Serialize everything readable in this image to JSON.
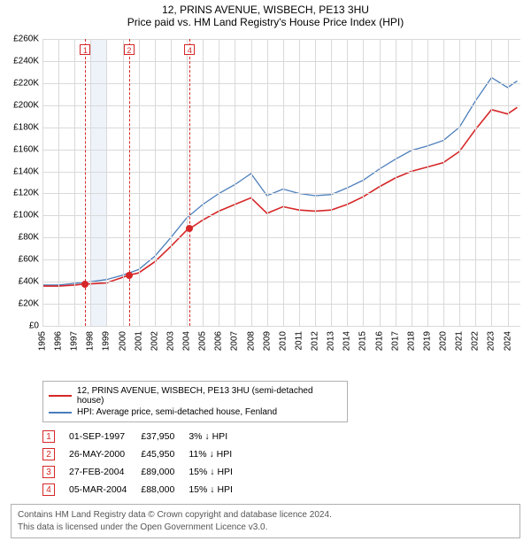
{
  "title": {
    "line1": "12, PRINS AVENUE, WISBECH, PE13 3HU",
    "line2": "Price paid vs. HM Land Registry's House Price Index (HPI)"
  },
  "chart": {
    "type": "line",
    "x_domain": [
      1995,
      2024.8
    ],
    "y_domain": [
      0,
      260000
    ],
    "y_ticks": [
      0,
      20000,
      40000,
      60000,
      80000,
      100000,
      120000,
      140000,
      160000,
      180000,
      200000,
      220000,
      240000,
      260000
    ],
    "y_tick_labels": [
      "£0",
      "£20K",
      "£40K",
      "£60K",
      "£80K",
      "£100K",
      "£120K",
      "£140K",
      "£160K",
      "£180K",
      "£200K",
      "£220K",
      "£240K",
      "£260K"
    ],
    "x_ticks": [
      1995,
      1996,
      1997,
      1998,
      1999,
      2000,
      2001,
      2002,
      2003,
      2004,
      2005,
      2006,
      2007,
      2008,
      2009,
      2010,
      2011,
      2012,
      2013,
      2014,
      2015,
      2016,
      2017,
      2018,
      2019,
      2020,
      2021,
      2022,
      2023,
      2024
    ],
    "gridline_color": "#d9d9d9",
    "background_color": "#ffffff",
    "band": {
      "start": 1998,
      "end": 1999,
      "color": "#eef3fa"
    },
    "series": [
      {
        "id": "price_paid",
        "label": "12, PRINS AVENUE, WISBECH, PE13 3HU (semi-detached house)",
        "color": "#d62728",
        "line_width": 1.6,
        "points": [
          [
            1995,
            36000
          ],
          [
            1996,
            36000
          ],
          [
            1997,
            37000
          ],
          [
            1997.67,
            37950
          ],
          [
            1998,
            38000
          ],
          [
            1999,
            39000
          ],
          [
            2000.4,
            45950
          ],
          [
            2001,
            48000
          ],
          [
            2002,
            58000
          ],
          [
            2003,
            72000
          ],
          [
            2004.15,
            89000
          ],
          [
            2004.18,
            88000
          ],
          [
            2005,
            96000
          ],
          [
            2006,
            104000
          ],
          [
            2007,
            110000
          ],
          [
            2008,
            116000
          ],
          [
            2009,
            102000
          ],
          [
            2010,
            108000
          ],
          [
            2011,
            105000
          ],
          [
            2012,
            104000
          ],
          [
            2013,
            105000
          ],
          [
            2014,
            110000
          ],
          [
            2015,
            117000
          ],
          [
            2016,
            126000
          ],
          [
            2017,
            134000
          ],
          [
            2018,
            140000
          ],
          [
            2019,
            144000
          ],
          [
            2020,
            148000
          ],
          [
            2021,
            158000
          ],
          [
            2022,
            178000
          ],
          [
            2023,
            196000
          ],
          [
            2024,
            192000
          ],
          [
            2024.6,
            198000
          ]
        ]
      },
      {
        "id": "hpi",
        "label": "HPI: Average price, semi-detached house, Fenland",
        "color": "#4a7ebb",
        "line_width": 1.3,
        "points": [
          [
            1995,
            37000
          ],
          [
            1996,
            37000
          ],
          [
            1997,
            38500
          ],
          [
            1998,
            40000
          ],
          [
            1999,
            42000
          ],
          [
            2000,
            46000
          ],
          [
            2001,
            51000
          ],
          [
            2002,
            63000
          ],
          [
            2003,
            80000
          ],
          [
            2004,
            98000
          ],
          [
            2005,
            110000
          ],
          [
            2006,
            120000
          ],
          [
            2007,
            128000
          ],
          [
            2008,
            138000
          ],
          [
            2009,
            118000
          ],
          [
            2010,
            124000
          ],
          [
            2011,
            120000
          ],
          [
            2012,
            118000
          ],
          [
            2013,
            119000
          ],
          [
            2014,
            125000
          ],
          [
            2015,
            132000
          ],
          [
            2016,
            142000
          ],
          [
            2017,
            151000
          ],
          [
            2018,
            159000
          ],
          [
            2019,
            163000
          ],
          [
            2020,
            168000
          ],
          [
            2021,
            180000
          ],
          [
            2022,
            204000
          ],
          [
            2023,
            225000
          ],
          [
            2024,
            216000
          ],
          [
            2024.6,
            222000
          ]
        ]
      }
    ],
    "sale_markers": [
      {
        "n": "1",
        "x": 1997.67,
        "y": 37950,
        "color": "#d62728"
      },
      {
        "n": "2",
        "x": 2000.4,
        "y": 45950,
        "color": "#d62728"
      },
      {
        "n": "4",
        "x": 2004.18,
        "y": 88000,
        "color": "#d62728"
      }
    ]
  },
  "legend": {
    "items": [
      {
        "color": "#d62728",
        "label": "12, PRINS AVENUE, WISBECH, PE13 3HU (semi-detached house)"
      },
      {
        "color": "#4a7ebb",
        "label": "HPI: Average price, semi-detached house, Fenland"
      }
    ]
  },
  "sales": [
    {
      "n": "1",
      "color": "#d62728",
      "date": "01-SEP-1997",
      "price": "£37,950",
      "delta": "3% ↓ HPI"
    },
    {
      "n": "2",
      "color": "#d62728",
      "date": "26-MAY-2000",
      "price": "£45,950",
      "delta": "11% ↓ HPI"
    },
    {
      "n": "3",
      "color": "#d62728",
      "date": "27-FEB-2004",
      "price": "£89,000",
      "delta": "15% ↓ HPI"
    },
    {
      "n": "4",
      "color": "#d62728",
      "date": "05-MAR-2004",
      "price": "£88,000",
      "delta": "15% ↓ HPI"
    }
  ],
  "footer": {
    "line1": "Contains HM Land Registry data © Crown copyright and database licence 2024.",
    "line2": "This data is licensed under the Open Government Licence v3.0."
  }
}
